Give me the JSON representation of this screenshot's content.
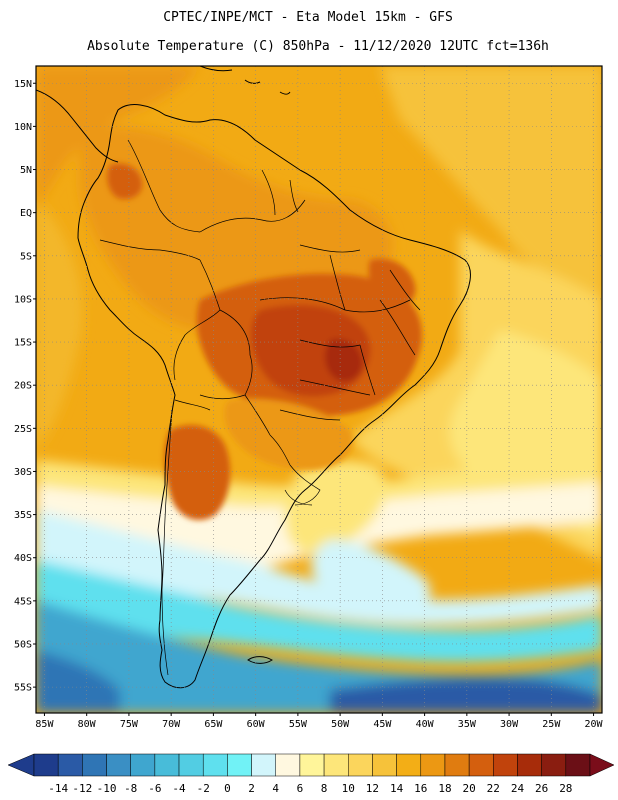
{
  "header": {
    "line1": "CPTEC/INPE/MCT -  Eta Model 15km - GFS",
    "line2": "Absolute Temperature (C) 850hPa - 11/12/2020 12UTC fct=136h"
  },
  "map": {
    "lat_labels": [
      "15N",
      "10N",
      "5N",
      "EQ",
      "5S",
      "10S",
      "15S",
      "20S",
      "25S",
      "30S",
      "35S",
      "40S",
      "45S",
      "50S",
      "55S"
    ],
    "lat_values": [
      15,
      10,
      5,
      0,
      -5,
      -10,
      -15,
      -20,
      -25,
      -30,
      -35,
      -40,
      -45,
      -50,
      -55
    ],
    "lon_labels": [
      "85W",
      "80W",
      "75W",
      "70W",
      "65W",
      "60W",
      "55W",
      "50W",
      "45W",
      "40W",
      "35W",
      "30W",
      "25W",
      "20W"
    ],
    "lon_values": [
      -85,
      -80,
      -75,
      -70,
      -65,
      -60,
      -55,
      -50,
      -45,
      -40,
      -35,
      -30,
      -25,
      -20
    ],
    "lat_range": [
      -58,
      17
    ],
    "lon_range": [
      -86,
      -19
    ],
    "grid": "dotted"
  },
  "colorbar": {
    "labels": [
      "-14",
      "-12",
      "-10",
      "-8",
      "-6",
      "-4",
      "-2",
      "0",
      "2",
      "4",
      "6",
      "8",
      "10",
      "12",
      "14",
      "16",
      "18",
      "20",
      "22",
      "24",
      "26",
      "28"
    ],
    "colors": [
      "#1e3c8c",
      "#2a5aa6",
      "#2f75b5",
      "#3a8fc4",
      "#3fa6cf",
      "#48bcd9",
      "#52cde3",
      "#5fe0ee",
      "#71f2f6",
      "#d2f5fb",
      "#fff8e0",
      "#fff59a",
      "#fde67a",
      "#fbd55c",
      "#f6c23a",
      "#f3ae16",
      "#ec9813",
      "#e07c10",
      "#d45f0e",
      "#c1430c",
      "#a72c0a",
      "#8a1d10",
      "#6b0f16"
    ],
    "low_color": "#1e3c8c",
    "high_color": "#7a0d1a"
  },
  "palette": {
    "deep_blue": "#2a5aa6",
    "mid_blue": "#3fa6cf",
    "cyan": "#5fe0ee",
    "pale_cyan": "#d2f5fb",
    "cream": "#fff8e0",
    "pale_yellow": "#fde67a",
    "yellow": "#fbd55c",
    "gold": "#f6c23a",
    "orange": "#f3ae16",
    "dark_orange": "#ec9813",
    "burnt": "#d45f0e",
    "deep_burnt": "#c1430c",
    "coast": "#000000"
  }
}
